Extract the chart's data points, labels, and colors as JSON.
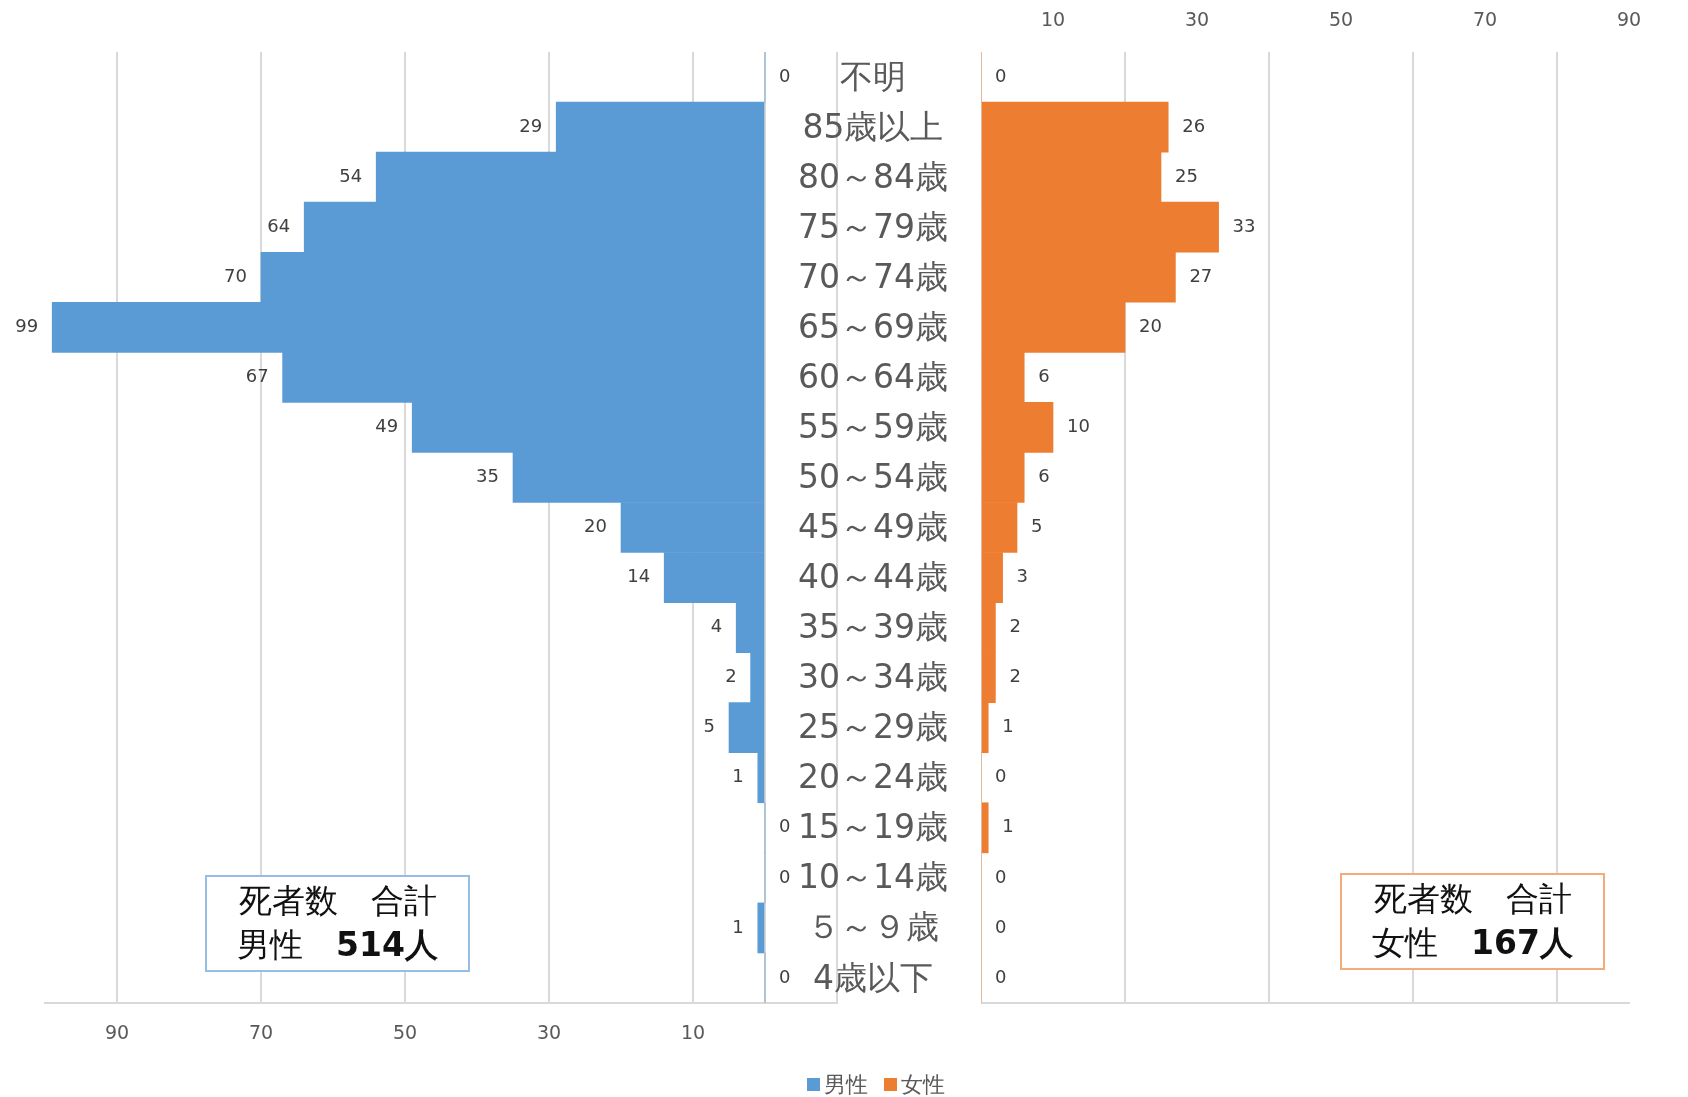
{
  "chart_data": [
    {
      "type": "bar",
      "orientation": "horizontal",
      "categories": [
        "不明",
        "85歳以上",
        "80～84歳",
        "75～79歳",
        "70～74歳",
        "65～69歳",
        "60～64歳",
        "55～59歳",
        "50～54歳",
        "45～49歳",
        "40～44歳",
        "35～39歳",
        "30～34歳",
        "25～29歳",
        "20～24歳",
        "15～19歳",
        "10～14歳",
        "５～９歳",
        "4歳以下"
      ],
      "series": [
        {
          "name": "男性",
          "color": "#5b9bd5",
          "values": [
            0,
            29,
            54,
            64,
            70,
            99,
            67,
            49,
            35,
            20,
            14,
            4,
            2,
            5,
            1,
            0,
            0,
            1,
            0
          ]
        }
      ],
      "xlim": [
        100,
        -10
      ],
      "xticks": [
        90,
        70,
        50,
        30,
        10,
        {
          "value": 0,
          "label": null
        },
        {
          "value": -10,
          "label": null
        }
      ],
      "grid": "x",
      "data_labels": true,
      "legend": "bottom",
      "annotations": [
        "死者数　合計",
        "男性　514人"
      ]
    },
    {
      "type": "bar",
      "orientation": "horizontal",
      "categories": [
        null,
        null,
        null,
        null,
        null,
        null,
        null,
        null,
        null,
        null,
        null,
        null,
        null,
        null,
        null,
        null,
        null,
        null,
        null
      ],
      "series": [
        {
          "name": "女性",
          "color": "#ed7d31",
          "values": [
            0,
            26,
            25,
            33,
            27,
            20,
            6,
            10,
            6,
            5,
            3,
            2,
            2,
            1,
            0,
            1,
            0,
            0,
            0
          ]
        }
      ],
      "xlim": [
        0,
        90
      ],
      "xticks": [
        {
          "value": 0,
          "label": null
        },
        {
          "value": 20,
          "label": null
        },
        {
          "value": 40,
          "label": null
        },
        {
          "value": 60,
          "label": null
        },
        {
          "value": 80,
          "label": null
        }
      ],
      "x2lim": [
        0,
        90
      ],
      "x2ticks": [
        10,
        30,
        50,
        70,
        90
      ],
      "grid": "x",
      "data_labels": true,
      "legend": "bottom",
      "annotations": [
        "死者数　合計",
        "女性　167人"
      ]
    }
  ]
}
